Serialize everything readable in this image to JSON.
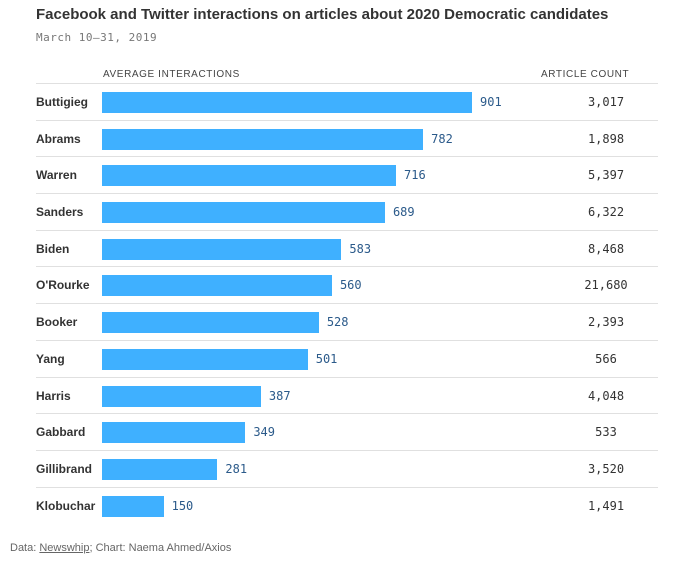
{
  "title": "Facebook and Twitter interactions on articles about 2020 Democratic candidates",
  "subtitle": "March 10–31, 2019",
  "headers": {
    "left": "AVERAGE INTERACTIONS",
    "right": "ARTICLE COUNT"
  },
  "source": {
    "prefix": "Data: ",
    "link": "Newswhip",
    "suffix": "; Chart: Naema Ahmed/Axios"
  },
  "colors": {
    "bar": "#3fb0ff",
    "value_text": "#2b5a8a"
  },
  "chart_data": {
    "type": "bar",
    "orientation": "horizontal",
    "title": "Facebook and Twitter interactions on articles about 2020 Democratic candidates",
    "subtitle": "March 10–31, 2019",
    "categories": [
      "Buttigieg",
      "Abrams",
      "Warren",
      "Sanders",
      "Biden",
      "O'Rourke",
      "Booker",
      "Yang",
      "Harris",
      "Gabbard",
      "Gillibrand",
      "Klobuchar"
    ],
    "series": [
      {
        "name": "AVERAGE INTERACTIONS",
        "values": [
          901,
          782,
          716,
          689,
          583,
          560,
          528,
          501,
          387,
          349,
          281,
          150
        ]
      }
    ],
    "article_count": [
      "3,017",
      "1,898",
      "5,397",
      "6,322",
      "8,468",
      "21,680",
      "2,393",
      "566",
      "4,048",
      "533",
      "3,520",
      "1,491"
    ]
  }
}
